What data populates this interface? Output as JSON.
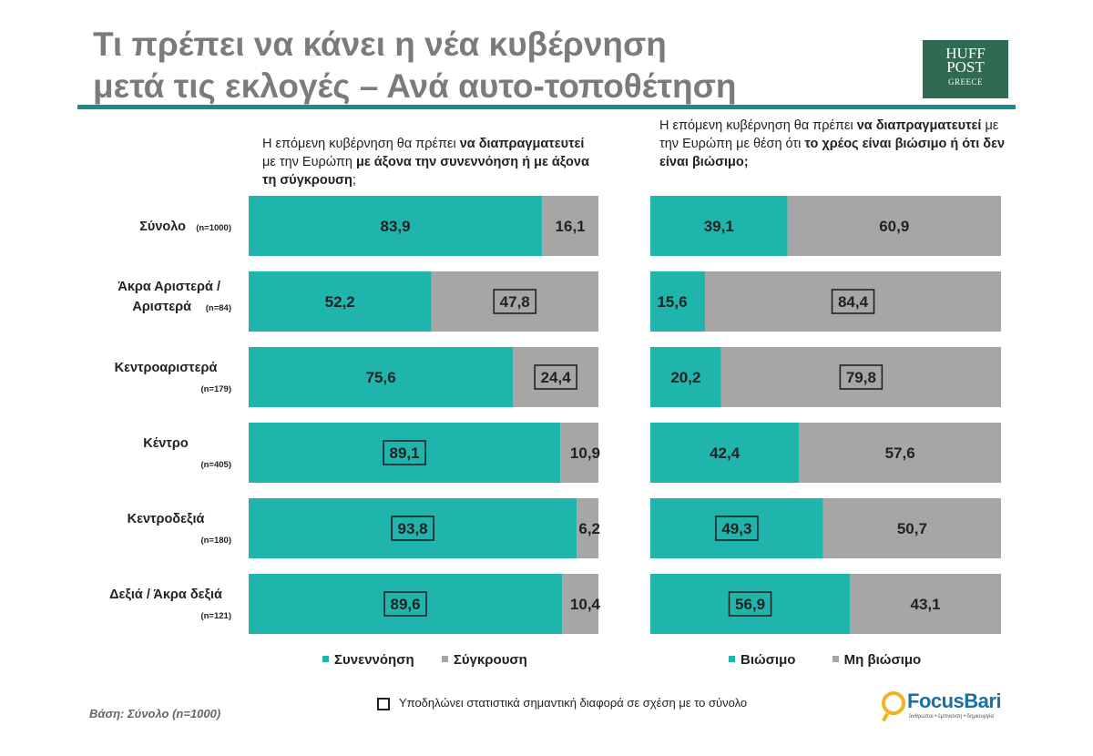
{
  "title": {
    "line1": "Τι πρέπει να κάνει η νέα κυβέρνηση",
    "line2": "μετά τις εκλογές – Ανά αυτο-τοποθέτηση"
  },
  "logo_huffpost": {
    "line1": "HUFF",
    "line2": "POST",
    "line3": "GREECE"
  },
  "colors": {
    "teal": "#1fb5ac",
    "gray": "#a6a6a6",
    "rule": "#1a8a8a"
  },
  "questions": {
    "left": {
      "part1": "Η επόμενη κυβέρνηση θα πρέπει ",
      "part2": "να διαπραγματευτεί",
      "part3": " με την Ευρώπη ",
      "part4": "με άξονα την συνεννόηση ή με άξονα τη σύγκρουση",
      "part5": ";"
    },
    "right": {
      "part1": "Η επόμενη κυβέρνηση θα πρέπει ",
      "part2": "να διαπραγματευτεί",
      "part3": " με την Ευρώπη με θέση ότι ",
      "part4": "το χρέος είναι βιώσιμο ή ότι δεν είναι βιώσιμο;",
      "part5": ""
    }
  },
  "chart_data": [
    {
      "type": "bar",
      "orientation": "horizontal",
      "stacked": true,
      "categories": [
        {
          "label": "Σύνολο",
          "n": "(n=1000)"
        },
        {
          "label": "Άκρα Αριστερά /",
          "label2": "Αριστερά",
          "n": "(n=84)"
        },
        {
          "label": "Κεντροαριστερά",
          "n": "(n=179)"
        },
        {
          "label": "Κέντρο",
          "n": "(n=405)"
        },
        {
          "label": "Κεντροδεξιά",
          "n": "(n=180)"
        },
        {
          "label": "Δεξιά / Άκρα δεξιά",
          "n": "(n=121)"
        }
      ],
      "series": [
        {
          "name": "Συνεννόηση",
          "color": "#1fb5ac",
          "values": [
            "83,9",
            "52,2",
            "75,6",
            "89,1",
            "93,8",
            "89,6"
          ],
          "boxed": [
            false,
            false,
            false,
            true,
            true,
            true
          ]
        },
        {
          "name": "Σύγκρουση",
          "color": "#a6a6a6",
          "values": [
            "16,1",
            "47,8",
            "24,4",
            "10,9",
            "6,2",
            "10,4"
          ],
          "boxed": [
            false,
            true,
            true,
            false,
            false,
            false
          ]
        }
      ],
      "xlim": [
        0,
        100
      ]
    },
    {
      "type": "bar",
      "orientation": "horizontal",
      "stacked": true,
      "series": [
        {
          "name": "Βιώσιμο",
          "color": "#1fb5ac",
          "values": [
            "39,1",
            "15,6",
            "20,2",
            "42,4",
            "49,3",
            "56,9"
          ],
          "boxed": [
            false,
            false,
            false,
            false,
            true,
            true
          ]
        },
        {
          "name": "Μη βιώσιμο",
          "color": "#a6a6a6",
          "values": [
            "60,9",
            "84,4",
            "79,8",
            "57,6",
            "50,7",
            "43,1"
          ],
          "boxed": [
            false,
            true,
            true,
            false,
            false,
            false
          ]
        }
      ],
      "xlim": [
        0,
        100
      ]
    }
  ],
  "legend": {
    "left": [
      "Συνεννόηση",
      "Σύγκρουση"
    ],
    "right": [
      "Βιώσιμο",
      "Μη βιώσιμο"
    ]
  },
  "footer": {
    "base": "Βάση: Σύνολο (n=1000)",
    "note": "Υποδηλώνει στατιστικά σημαντική διαφορά σε σχέση με το σύνολο"
  },
  "logo_focusbari": {
    "name": "FocusBari",
    "tagline": "άνθρωποι • έμπνευση • δημιουργία",
    "icon": "magnifier-icon"
  }
}
